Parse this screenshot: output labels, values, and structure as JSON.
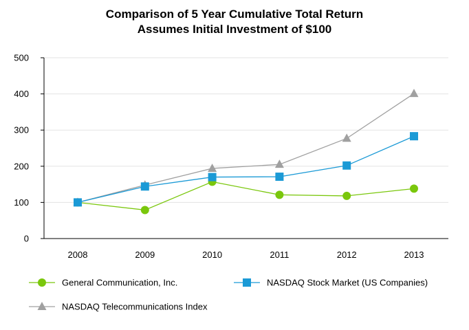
{
  "title_line1": "Comparison of 5 Year Cumulative Total Return",
  "title_line2": "Assumes Initial Investment of $100",
  "chart_data": {
    "type": "line",
    "title": "Comparison of 5 Year Cumulative Total Return",
    "subtitle": "Assumes Initial Investment of $100",
    "categories": [
      "2008",
      "2009",
      "2010",
      "2011",
      "2012",
      "2013"
    ],
    "ylim": [
      0,
      500
    ],
    "yticks": [
      "0",
      "100",
      "200",
      "300",
      "400",
      "500"
    ],
    "grid": true,
    "legend_position": "bottom",
    "series": [
      {
        "name": "General Communication, Inc.",
        "values": [
          100,
          79,
          157,
          121,
          118,
          138
        ],
        "color": "#7ac70c",
        "marker": "circle"
      },
      {
        "name": "NASDAQ Stock Market (US Companies)",
        "values": [
          100,
          144,
          170,
          171,
          202,
          283
        ],
        "color": "#1b9ad6",
        "marker": "square"
      },
      {
        "name": "NASDAQ Telecommunications Index",
        "values": [
          100,
          148,
          194,
          205,
          277,
          401
        ],
        "color": "#a0a0a0",
        "marker": "triangle"
      }
    ]
  }
}
